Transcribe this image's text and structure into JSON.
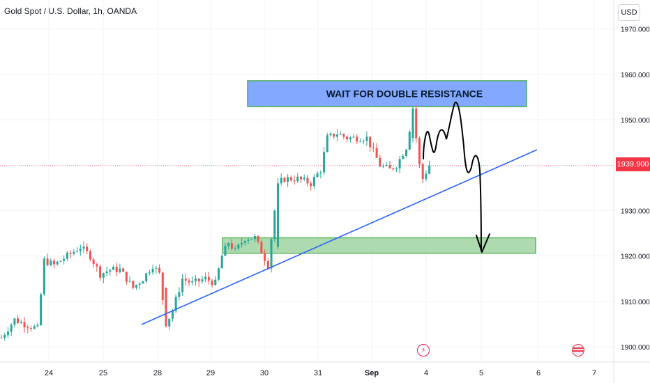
{
  "header": {
    "symbol_title": "Gold Spot / U.S. Dollar, 1h, OANDA",
    "currency": "USD"
  },
  "current_price": "1939.900",
  "colors": {
    "up": "#26a69a",
    "down": "#ef5350",
    "price_line": "#f23645",
    "trendline": "#2962ff",
    "resistance_fill": "#82a9ff",
    "support_fill": "#a5d6a7",
    "zone_border": "#4caf50"
  },
  "chart_data": {
    "type": "candlestick",
    "y_axis": {
      "ticks": [
        "1900.000",
        "1910.000",
        "1920.000",
        "1930.000",
        "1940.000",
        "1950.000",
        "1960.000",
        "1970.000"
      ],
      "range": [
        1899,
        1971
      ]
    },
    "x_axis": {
      "ticks": [
        "24",
        "25",
        "28",
        "29",
        "30",
        "31",
        "Sep",
        "4",
        "5",
        "6",
        "7"
      ]
    },
    "annotations": {
      "resistance_text": "WAIT FOR DOUBLE RESISTANCE",
      "resistance_zone": [
        1952.9,
        1958.6
      ],
      "support_zone": [
        1920.6,
        1924.0
      ]
    },
    "approx_close_path": [
      [
        0,
        1902
      ],
      [
        4,
        1906
      ],
      [
        7,
        1905
      ],
      [
        11,
        1904
      ],
      [
        13,
        1919
      ],
      [
        16,
        1918
      ],
      [
        20,
        1920
      ],
      [
        24,
        1922
      ],
      [
        27,
        1920
      ],
      [
        30,
        1916
      ],
      [
        33,
        1917
      ],
      [
        36,
        1917
      ],
      [
        40,
        1913
      ],
      [
        43,
        1915
      ],
      [
        46,
        1918
      ],
      [
        48,
        1916
      ],
      [
        50,
        1905
      ],
      [
        52,
        1908
      ],
      [
        55,
        1915
      ],
      [
        58,
        1914
      ],
      [
        62,
        1915
      ],
      [
        65,
        1914
      ],
      [
        67,
        1920
      ],
      [
        69,
        1923
      ],
      [
        71,
        1921
      ],
      [
        74,
        1924
      ],
      [
        77,
        1924
      ],
      [
        79,
        1921
      ],
      [
        81,
        1918
      ],
      [
        82,
        1924
      ],
      [
        84,
        1936
      ],
      [
        86,
        1937
      ],
      [
        90,
        1937
      ],
      [
        94,
        1936
      ],
      [
        97,
        1939
      ],
      [
        99,
        1946
      ],
      [
        102,
        1947
      ],
      [
        105,
        1946
      ],
      [
        108,
        1946
      ],
      [
        111,
        1946
      ],
      [
        113,
        1943
      ],
      [
        115,
        1940
      ],
      [
        118,
        1939
      ],
      [
        120,
        1940
      ],
      [
        123,
        1944
      ],
      [
        125,
        1952
      ],
      [
        127,
        1940
      ],
      [
        128,
        1937
      ],
      [
        130,
        1940
      ]
    ]
  }
}
